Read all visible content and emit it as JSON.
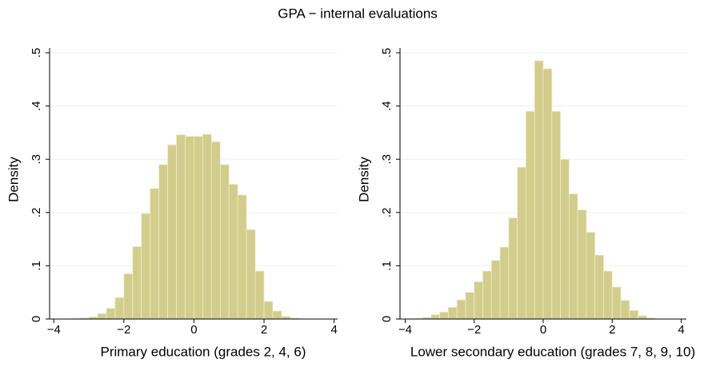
{
  "title": "GPA − internal evaluations",
  "chart_data": [
    {
      "type": "histogram",
      "xlabel": "Primary education (grades 2, 4, 6)",
      "ylabel": "Density",
      "bins": [
        -3.5,
        -3.25,
        -3.0,
        -2.75,
        -2.5,
        -2.25,
        -2.0,
        -1.75,
        -1.5,
        -1.25,
        -1.0,
        -0.75,
        -0.5,
        -0.25,
        0,
        0.25,
        0.5,
        0.75,
        1.0,
        1.25,
        1.5,
        1.75,
        2.0,
        2.25,
        2.5,
        2.75,
        3.0
      ],
      "values": [
        0.001,
        0.002,
        0.004,
        0.01,
        0.02,
        0.04,
        0.085,
        0.136,
        0.198,
        0.245,
        0.29,
        0.327,
        0.346,
        0.343,
        0.343,
        0.347,
        0.333,
        0.29,
        0.253,
        0.233,
        0.168,
        0.09,
        0.033,
        0.015,
        0.005,
        0.002
      ],
      "color": "#d3cd8b",
      "xlim": [
        -4.12,
        4.1
      ],
      "ylim": [
        0,
        0.5
      ],
      "xticks": [
        {
          "value": -4,
          "label": "−4"
        },
        {
          "value": -2,
          "label": "−2"
        },
        0,
        2,
        4
      ],
      "yticks": [
        0,
        {
          "value": 0.1,
          "label": ".1"
        },
        {
          "value": 0.2,
          "label": ".2"
        },
        {
          "value": 0.3,
          "label": ".3"
        },
        {
          "value": 0.4,
          "label": ".4"
        },
        {
          "value": 0.5,
          "label": ".5"
        }
      ],
      "grid": true
    },
    {
      "type": "histogram",
      "xlabel": "Lower secondary education (grades 7, 8, 9, 10)",
      "ylabel": "Density",
      "bins": [
        -3.75,
        -3.5,
        -3.25,
        -3.0,
        -2.75,
        -2.5,
        -2.25,
        -2.0,
        -1.75,
        -1.5,
        -1.25,
        -1.0,
        -0.75,
        -0.5,
        -0.25,
        0,
        0.25,
        0.5,
        0.75,
        1.0,
        1.25,
        1.5,
        1.75,
        2.0,
        2.25,
        2.5,
        2.75,
        3.0,
        3.25
      ],
      "values": [
        0.001,
        0.003,
        0.008,
        0.013,
        0.022,
        0.036,
        0.05,
        0.07,
        0.09,
        0.11,
        0.135,
        0.19,
        0.285,
        0.39,
        0.485,
        0.47,
        0.39,
        0.3,
        0.235,
        0.205,
        0.163,
        0.12,
        0.09,
        0.06,
        0.035,
        0.016,
        0.006,
        0.002
      ],
      "color": "#d3cd8b",
      "xlim": [
        -4.15,
        4.15
      ],
      "ylim": [
        0,
        0.5
      ],
      "xticks": [
        {
          "value": -4,
          "label": "−4"
        },
        {
          "value": -2,
          "label": "−2"
        },
        0,
        2,
        4
      ],
      "yticks": [
        0,
        {
          "value": 0.1,
          "label": ".1"
        },
        {
          "value": 0.2,
          "label": ".2"
        },
        {
          "value": 0.3,
          "label": ".3"
        },
        {
          "value": 0.4,
          "label": ".4"
        },
        {
          "value": 0.5,
          "label": ".5"
        }
      ],
      "grid": true
    }
  ]
}
